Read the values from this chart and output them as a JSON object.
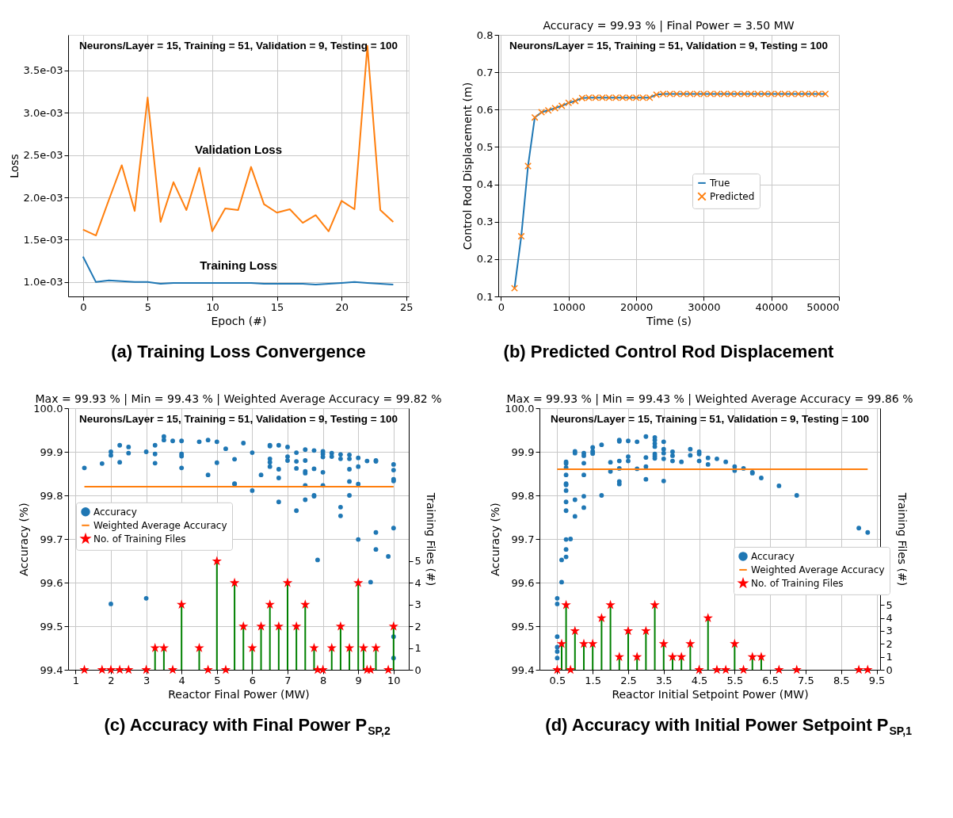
{
  "chart_data": [
    {
      "type": "line",
      "title": "(a) Training Loss Convergence",
      "xlabel": "Epoch (#)",
      "ylabel": "Loss",
      "x": [
        0,
        1,
        2,
        3,
        4,
        5,
        6,
        7,
        8,
        9,
        10,
        11,
        12,
        13,
        14,
        15,
        16,
        17,
        18,
        19,
        20,
        21,
        22,
        23,
        24
      ],
      "series": [
        {
          "name": "Validation Loss",
          "color": "#ff7f0e",
          "values": [
            0.00162,
            0.00155,
            0.00197,
            0.00238,
            0.00184,
            0.00318,
            0.00171,
            0.00218,
            0.00185,
            0.00235,
            0.0016,
            0.00187,
            0.00185,
            0.00236,
            0.00192,
            0.00182,
            0.00186,
            0.0017,
            0.00179,
            0.0016,
            0.00196,
            0.00186,
            0.00379,
            0.00185,
            0.00171
          ]
        },
        {
          "name": "Training Loss",
          "color": "#1f77b4",
          "values": [
            0.0013,
            0.001,
            0.00102,
            0.00101,
            0.001,
            0.001,
            0.00098,
            0.00099,
            0.00099,
            0.00099,
            0.00099,
            0.00099,
            0.00099,
            0.00099,
            0.00098,
            0.00098,
            0.00098,
            0.00098,
            0.00097,
            0.00098,
            0.00099,
            0.001,
            0.00099,
            0.00098,
            0.00097
          ]
        }
      ],
      "xlim": [
        -1.15,
        25.2
      ],
      "xticks": [
        0,
        5,
        10,
        15,
        20,
        25
      ],
      "ylim": [
        0.00083,
        0.00392
      ],
      "yticks": [
        {
          "value": 0.001,
          "label": "1.0e-03"
        },
        {
          "value": 0.0015,
          "label": "1.5e-03"
        },
        {
          "value": 0.002,
          "label": "2.0e-03"
        },
        {
          "value": 0.0025,
          "label": "2.5e-03"
        },
        {
          "value": 0.003,
          "label": "3.0e-03"
        },
        {
          "value": 0.0035,
          "label": "3.5e-03"
        }
      ],
      "annotations": [
        "Neurons/Layer = 15, Training = 51, Validation = 9, Testing = 100"
      ],
      "grid": true,
      "legend": false
    },
    {
      "type": "line",
      "title": "(b) Predicted Control Rod Displacement",
      "subtitle": "Accuracy = 99.93 % | Final Power = 3.50 MW",
      "xlabel": "Time (s)",
      "ylabel": "Control Rod Displacement (m)",
      "x": [
        2000,
        3000,
        4000,
        5000,
        6000,
        7000,
        8000,
        9000,
        10000,
        11000,
        12000,
        13000,
        14000,
        15000,
        16000,
        17000,
        18000,
        19000,
        20000,
        21000,
        22000,
        23000,
        24000,
        25000,
        26000,
        27000,
        28000,
        29000,
        30000,
        31000,
        32000,
        33000,
        34000,
        35000,
        36000,
        37000,
        38000,
        39000,
        40000,
        41000,
        42000,
        43000,
        44000,
        45000,
        46000,
        47000,
        48000
      ],
      "series": [
        {
          "name": "True",
          "type": "line",
          "color": "#1f77b4",
          "values": [
            0.122,
            0.261,
            0.449,
            0.579,
            0.593,
            0.598,
            0.604,
            0.61,
            0.618,
            0.623,
            0.631,
            0.632,
            0.632,
            0.632,
            0.632,
            0.632,
            0.632,
            0.632,
            0.632,
            0.632,
            0.632,
            0.64,
            0.642,
            0.642,
            0.642,
            0.642,
            0.642,
            0.642,
            0.642,
            0.642,
            0.642,
            0.642,
            0.642,
            0.642,
            0.642,
            0.642,
            0.642,
            0.642,
            0.642,
            0.642,
            0.642,
            0.642,
            0.642,
            0.642,
            0.642,
            0.642,
            0.642
          ]
        },
        {
          "name": "Predicted",
          "type": "scatter",
          "marker": "cross",
          "color": "#ff7f0e",
          "values": [
            0.122,
            0.261,
            0.449,
            0.579,
            0.593,
            0.598,
            0.604,
            0.61,
            0.618,
            0.623,
            0.631,
            0.632,
            0.632,
            0.632,
            0.632,
            0.632,
            0.632,
            0.632,
            0.632,
            0.632,
            0.632,
            0.64,
            0.642,
            0.642,
            0.642,
            0.642,
            0.642,
            0.642,
            0.642,
            0.642,
            0.642,
            0.642,
            0.642,
            0.642,
            0.642,
            0.642,
            0.642,
            0.642,
            0.642,
            0.642,
            0.642,
            0.642,
            0.642,
            0.642,
            0.642,
            0.642,
            0.642
          ]
        }
      ],
      "xlim": [
        -400,
        50000
      ],
      "xticks": [
        0,
        10000,
        20000,
        30000,
        40000,
        50000
      ],
      "ylim": [
        0.1,
        0.8
      ],
      "yticks": [
        0.1,
        0.2,
        0.3,
        0.4,
        0.5,
        0.6,
        0.7,
        0.8
      ],
      "annotations": [
        "Neurons/Layer = 15, Training = 51, Validation = 9, Testing = 100"
      ],
      "grid": true,
      "legend": "right"
    },
    {
      "type": "scatter",
      "title": "(c) Accuracy with Final Power P$_{SP,2}$",
      "subtitle": "Max = 99.93 % | Min = 99.43 % | Weighted Average Accuracy = 99.82 %",
      "xlabel": "Reactor Final Power (MW)",
      "ylabel": "Accuracy (%)",
      "y2label": "Training Files (#)",
      "series": [
        {
          "name": "Accuracy",
          "type": "scatter",
          "marker": "circle",
          "color": "#1f77b4",
          "x": [
            1.25,
            1.75,
            2,
            2,
            2,
            2.25,
            2.25,
            2.5,
            2.5,
            3,
            3,
            3.25,
            3.25,
            3.25,
            3.5,
            3.5,
            3.75,
            4,
            4,
            4,
            4,
            4.5,
            4.75,
            4.75,
            5,
            5,
            5.25,
            5.5,
            5.5,
            5.5,
            5.75,
            6,
            6,
            6.25,
            6.5,
            6.5,
            6.5,
            6.5,
            6.5,
            6.75,
            6.75,
            6.75,
            6.75,
            7,
            7,
            7,
            7.25,
            7.25,
            7.25,
            7.25,
            7.5,
            7.5,
            7.5,
            7.5,
            7.5,
            7.5,
            7.75,
            7.75,
            7.75,
            7.75,
            7.85,
            8,
            8,
            8,
            8,
            8,
            8.25,
            8.25,
            8.5,
            8.5,
            8.5,
            8.5,
            8.75,
            8.75,
            8.75,
            8.75,
            8.75,
            9,
            9,
            9,
            9,
            9.25,
            9.35,
            9.5,
            9.5,
            9.5,
            9.5,
            9.85,
            10,
            10,
            10,
            10,
            10,
            10,
            10
          ],
          "values": [
            99.863,
            99.873,
            99.9,
            99.892,
            99.551,
            99.915,
            99.876,
            99.911,
            99.897,
            99.9,
            99.564,
            99.915,
            99.895,
            99.874,
            99.935,
            99.927,
            99.925,
            99.925,
            99.895,
            99.89,
            99.863,
            99.923,
            99.927,
            99.847,
            99.923,
            99.875,
            99.907,
            99.883,
            99.827,
            99.826,
            99.92,
            99.898,
            99.811,
            99.847,
            99.915,
            99.913,
            99.884,
            99.876,
            99.866,
            99.915,
            99.86,
            99.84,
            99.785,
            99.911,
            99.889,
            99.88,
            99.898,
            99.878,
            99.862,
            99.765,
            99.905,
            99.88,
            99.855,
            99.851,
            99.823,
            99.79,
            99.903,
            99.861,
            99.8,
            99.798,
            99.652,
            99.901,
            99.895,
            99.888,
            99.853,
            99.823,
            99.897,
            99.889,
            99.894,
            99.884,
            99.773,
            99.753,
            99.893,
            99.884,
            99.86,
            99.832,
            99.8,
            99.886,
            99.866,
            99.826,
            99.699,
            99.879,
            99.601,
            99.88,
            99.878,
            99.715,
            99.676,
            99.66,
            99.871,
            99.858,
            99.837,
            99.833,
            99.725,
            99.476,
            99.427
          ]
        },
        {
          "name": "Weighted Average Accuracy",
          "type": "line",
          "color": "#ff7f0e",
          "x": [
            1.25,
            10
          ],
          "values": [
            99.82,
            99.82
          ]
        },
        {
          "name": "No. of Training Files",
          "type": "lollipop",
          "marker": "star",
          "axis": "y2",
          "color": "#ff0000",
          "x": [
            1.25,
            1.75,
            2,
            2.25,
            2.5,
            3,
            3.25,
            3.5,
            3.75,
            4,
            4.5,
            4.75,
            5,
            5.25,
            5.5,
            5.75,
            6,
            6.25,
            6.5,
            6.75,
            7,
            7.25,
            7.5,
            7.75,
            7.85,
            8,
            8.25,
            8.5,
            8.75,
            9,
            9.15,
            9.25,
            9.35,
            9.5,
            9.85,
            10
          ],
          "values": [
            0,
            0,
            0,
            0,
            0,
            0,
            1,
            1,
            0,
            3,
            1,
            0,
            5,
            0,
            4,
            2,
            1,
            2,
            3,
            2,
            4,
            2,
            3,
            1,
            0,
            0,
            1,
            2,
            1,
            4,
            1,
            0,
            0,
            1,
            0,
            2
          ]
        }
      ],
      "xlim": [
        0.79,
        10.43
      ],
      "xticks": [
        1,
        2,
        3,
        4,
        5,
        6,
        7,
        8,
        9,
        10
      ],
      "ylim": [
        99.4,
        100.0
      ],
      "yticks": [
        99.4,
        99.5,
        99.6,
        99.7,
        99.8,
        99.9,
        {
          "value": 100.0,
          "label": "100.0"
        }
      ],
      "y2lim": [
        0,
        12.04
      ],
      "y2ticks": [
        0,
        1,
        2,
        3,
        4,
        5
      ],
      "annotations": [
        "Neurons/Layer = 15, Training = 51, Validation = 9, Testing = 100"
      ],
      "grid": true,
      "legend": "left"
    },
    {
      "type": "scatter",
      "title": "(d) Accuracy with Initial Power Setpoint P$_{SP,1}$",
      "subtitle": "Max = 99.93 % | Min = 99.43 % | Weighted Average Accuracy = 99.86 %",
      "xlabel": "Reactor Initial Setpoint Power (MW)",
      "ylabel": "Accuracy (%)",
      "y2label": "Training Files (#)",
      "series": [
        {
          "name": "Accuracy",
          "type": "scatter",
          "marker": "circle",
          "color": "#1f77b4",
          "x": [
            0.5,
            0.5,
            0.5,
            0.5,
            0.5,
            0.5,
            0.625,
            0.625,
            0.75,
            0.75,
            0.75,
            0.75,
            0.75,
            0.75,
            0.75,
            0.75,
            0.75,
            0.75,
            0.75,
            0.75,
            0.875,
            1,
            1,
            1,
            1,
            1.25,
            1.25,
            1.25,
            1.25,
            1.25,
            1.25,
            1.5,
            1.5,
            1.5,
            1.75,
            1.75,
            2,
            2,
            2.25,
            2.25,
            2.25,
            2.25,
            2.25,
            2.25,
            2.5,
            2.5,
            2.5,
            2.75,
            2.75,
            3,
            3,
            3,
            3,
            3.25,
            3.25,
            3.25,
            3.25,
            3.25,
            3.25,
            3.25,
            3.5,
            3.5,
            3.5,
            3.5,
            3.5,
            3.75,
            3.75,
            3.75,
            4,
            4.25,
            4.25,
            4.5,
            4.5,
            4.5,
            4.75,
            4.75,
            5,
            5.25,
            5.5,
            5.5,
            5.75,
            6,
            6,
            6.25,
            6.75,
            7.25,
            9,
            9.25
          ],
          "values": [
            99.564,
            99.551,
            99.476,
            99.452,
            99.442,
            99.427,
            99.652,
            99.601,
            99.877,
            99.873,
            99.864,
            99.847,
            99.827,
            99.824,
            99.811,
            99.785,
            99.765,
            99.699,
            99.676,
            99.659,
            99.7,
            99.901,
            99.897,
            99.79,
            99.752,
            99.897,
            99.891,
            99.874,
            99.847,
            99.798,
            99.772,
            99.91,
            99.901,
            99.896,
            99.916,
            99.8,
            99.876,
            99.855,
            99.927,
            99.924,
            99.879,
            99.862,
            99.832,
            99.826,
            99.925,
            99.889,
            99.879,
            99.923,
            99.861,
            99.935,
            99.887,
            99.866,
            99.837,
            99.933,
            99.927,
            99.919,
            99.912,
            99.895,
            99.89,
            99.885,
            99.923,
            99.906,
            99.897,
            99.884,
            99.833,
            99.9,
            99.891,
            99.879,
            99.877,
            99.906,
            99.892,
            99.9,
            99.895,
            99.879,
            99.886,
            99.871,
            99.884,
            99.877,
            99.866,
            99.857,
            99.862,
            99.853,
            99.851,
            99.84,
            99.822,
            99.8,
            99.725,
            99.715
          ]
        },
        {
          "name": "Weighted Average Accuracy",
          "type": "line",
          "color": "#ff7f0e",
          "x": [
            0.5,
            9.25
          ],
          "values": [
            99.86,
            99.86
          ]
        },
        {
          "name": "No. of Training Files",
          "type": "lollipop",
          "marker": "star",
          "axis": "y2",
          "color": "#ff0000",
          "x": [
            0.5,
            0.625,
            0.75,
            0.875,
            1,
            1.25,
            1.5,
            1.75,
            2,
            2.25,
            2.5,
            2.75,
            3,
            3.25,
            3.5,
            3.75,
            4,
            4.25,
            4.5,
            4.75,
            5,
            5.25,
            5.5,
            5.75,
            6,
            6.25,
            6.75,
            7.25,
            9,
            9.25
          ],
          "values": [
            0,
            2,
            5,
            0,
            3,
            2,
            2,
            4,
            5,
            1,
            3,
            1,
            3,
            5,
            2,
            1,
            1,
            2,
            0,
            4,
            0,
            0,
            2,
            0,
            1,
            1,
            0,
            0,
            0,
            0
          ]
        }
      ],
      "xlim": [
        0.0,
        9.6
      ],
      "xticks": [
        0.5,
        1.5,
        2.5,
        3.5,
        4.5,
        5.5,
        6.5,
        7.5,
        8.5,
        9.5
      ],
      "ylim": [
        99.4,
        100.0
      ],
      "yticks": [
        99.4,
        99.5,
        99.6,
        99.7,
        99.8,
        99.9,
        {
          "value": 100.0,
          "label": "100.0"
        }
      ],
      "y2lim": [
        0,
        20.2
      ],
      "y2ticks": [
        0,
        1,
        2,
        3,
        4,
        5
      ],
      "annotations": [
        "Neurons/Layer = 15, Training = 51, Validation = 9, Testing = 100"
      ],
      "grid": true,
      "legend": "right"
    }
  ]
}
